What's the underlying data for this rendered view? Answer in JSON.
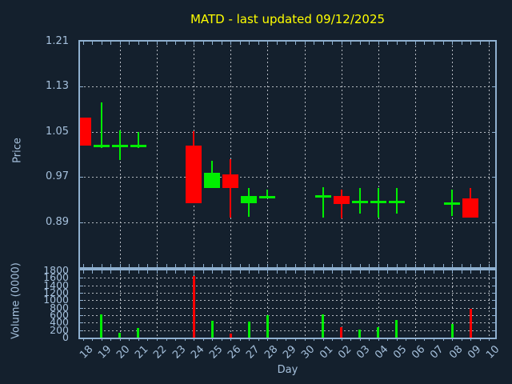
{
  "title": "MATD - last updated 09/12/2025",
  "ticker": "MATD",
  "last_updated": "09/12/2025",
  "xlabel": "Day",
  "colors": {
    "background": "#14202d",
    "spine": "#8fb0d0",
    "grid": "#b3b9c0",
    "label": "#a5c0dc",
    "title": "#ffff00",
    "up": "#00ee00",
    "down": "#ff0000"
  },
  "chart_data": {
    "type": "candlestick",
    "title": "MATD - last updated 09/12/2025",
    "xlabel": "Day",
    "x_categories": [
      "18",
      "19",
      "20",
      "21",
      "22",
      "23",
      "24",
      "25",
      "26",
      "27",
      "28",
      "29",
      "30",
      "01",
      "02",
      "03",
      "04",
      "05",
      "06",
      "07",
      "08",
      "09",
      "10"
    ],
    "grid_days": [
      "20",
      "22",
      "24",
      "26",
      "28",
      "30",
      "02",
      "04",
      "06",
      "08",
      "10"
    ],
    "legend": "none",
    "grid": "dotted",
    "price_panel": {
      "ylabel": "Price",
      "ylim": [
        0.81,
        1.21
      ],
      "yticks": [
        1.21,
        1.13,
        1.05,
        0.97,
        0.89
      ]
    },
    "volume_panel": {
      "ylabel": "Volume (0000)",
      "ylim": [
        0,
        1800
      ],
      "yticks": [
        1800,
        1600,
        1400,
        1200,
        1000,
        800,
        600,
        400,
        200,
        0
      ]
    },
    "candles": [
      {
        "day": "18",
        "open": 1.075,
        "high": 1.075,
        "low": 1.026,
        "close": 1.026,
        "volume": 0
      },
      {
        "day": "19",
        "open": 1.025,
        "high": 1.102,
        "low": 1.022,
        "close": 1.025,
        "volume": 620
      },
      {
        "day": "20",
        "open": 1.025,
        "high": 1.052,
        "low": 1.0,
        "close": 1.025,
        "volume": 130
      },
      {
        "day": "21",
        "open": 1.025,
        "high": 1.05,
        "low": 1.022,
        "close": 1.025,
        "volume": 260
      },
      {
        "day": "24",
        "open": 1.026,
        "high": 1.051,
        "low": 0.924,
        "close": 0.924,
        "volume": 1640
      },
      {
        "day": "25",
        "open": 0.95,
        "high": 0.999,
        "low": 0.95,
        "close": 0.977,
        "volume": 460
      },
      {
        "day": "26",
        "open": 0.975,
        "high": 1.002,
        "low": 0.898,
        "close": 0.95,
        "volume": 110
      },
      {
        "day": "27",
        "open": 0.923,
        "high": 0.95,
        "low": 0.899,
        "close": 0.936,
        "volume": 420
      },
      {
        "day": "28",
        "open": 0.934,
        "high": 0.948,
        "low": 0.934,
        "close": 0.934,
        "volume": 610
      },
      {
        "day": "01",
        "open": 0.935,
        "high": 0.952,
        "low": 0.898,
        "close": 0.935,
        "volume": 630
      },
      {
        "day": "02",
        "open": 0.936,
        "high": 0.948,
        "low": 0.897,
        "close": 0.922,
        "volume": 280
      },
      {
        "day": "03",
        "open": 0.925,
        "high": 0.95,
        "low": 0.905,
        "close": 0.925,
        "volume": 220
      },
      {
        "day": "04",
        "open": 0.925,
        "high": 0.95,
        "low": 0.898,
        "close": 0.925,
        "volume": 270
      },
      {
        "day": "05",
        "open": 0.925,
        "high": 0.95,
        "low": 0.905,
        "close": 0.925,
        "volume": 480
      },
      {
        "day": "08",
        "open": 0.923,
        "high": 0.948,
        "low": 0.901,
        "close": 0.923,
        "volume": 360
      },
      {
        "day": "09",
        "open": 0.932,
        "high": 0.95,
        "low": 0.898,
        "close": 0.898,
        "volume": 780
      }
    ]
  }
}
